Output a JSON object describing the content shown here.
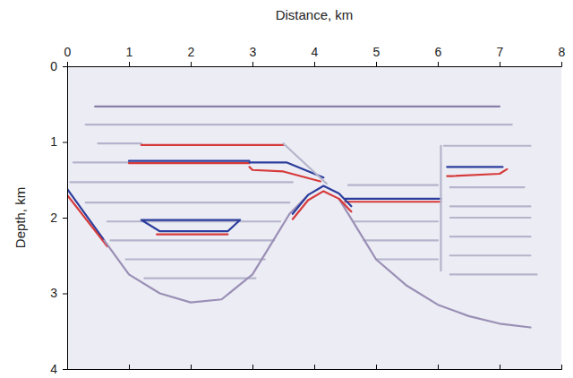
{
  "chart_data": {
    "type": "line",
    "x_label": "Distance, km",
    "y_label": "Depth, km",
    "xlim": [
      0,
      8
    ],
    "ylim": [
      0,
      4
    ],
    "xticks": [
      0,
      1,
      2,
      3,
      4,
      5,
      6,
      7,
      8
    ],
    "yticks": [
      0,
      1,
      2,
      3,
      4
    ],
    "series": [
      {
        "color": "#8a7ea8",
        "x": [
          0.45,
          7.0
        ],
        "values": [
          0.53,
          0.53
        ]
      },
      {
        "color": "#b4b4cc",
        "x": [
          0.3,
          7.2
        ],
        "values": [
          0.77,
          0.77
        ]
      },
      {
        "color": "#b4b4cc",
        "x": [
          0.5,
          1.2
        ],
        "values": [
          1.02,
          1.02
        ]
      },
      {
        "color": "#d63a3a",
        "x": [
          1.2,
          3.5
        ],
        "values": [
          1.04,
          1.04
        ]
      },
      {
        "color": "#b4b4cc",
        "x": [
          6.1,
          7.5
        ],
        "values": [
          1.05,
          1.05
        ]
      },
      {
        "color": "#b4b4cc",
        "x": [
          0.1,
          1.0
        ],
        "values": [
          1.27,
          1.27
        ]
      },
      {
        "color": "#2b3d9c",
        "x": [
          1.0,
          2.95
        ],
        "values": [
          1.25,
          1.25
        ]
      },
      {
        "color": "#d63a3a",
        "x": [
          1.0,
          2.95
        ],
        "values": [
          1.28,
          1.28
        ]
      },
      {
        "color": "#2b3d9c",
        "x": [
          2.95,
          3.55,
          4.15
        ],
        "values": [
          1.27,
          1.27,
          1.47
        ]
      },
      {
        "color": "#d63a3a",
        "x": [
          2.95,
          3.0,
          3.5,
          4.1
        ],
        "values": [
          1.33,
          1.37,
          1.39,
          1.52
        ]
      },
      {
        "color": "#b4b4cc",
        "x": [
          0.05,
          3.65
        ],
        "values": [
          1.53,
          1.53
        ]
      },
      {
        "color": "#b4b4cc",
        "x": [
          4.55,
          6.0
        ],
        "values": [
          1.57,
          1.57
        ]
      },
      {
        "color": "#b4b4cc",
        "x": [
          6.2,
          7.4
        ],
        "values": [
          1.6,
          1.6
        ]
      },
      {
        "color": "#b4b4cc",
        "x": [
          0.3,
          3.6
        ],
        "values": [
          1.8,
          1.8
        ]
      },
      {
        "color": "#2b3d9c",
        "x": [
          4.5,
          6.05
        ],
        "values": [
          1.75,
          1.75
        ]
      },
      {
        "color": "#d63a3a",
        "x": [
          4.5,
          6.05
        ],
        "values": [
          1.79,
          1.79
        ]
      },
      {
        "color": "#b4b4cc",
        "x": [
          6.2,
          7.5
        ],
        "values": [
          1.85,
          1.85
        ]
      },
      {
        "color": "#b4b4cc",
        "x": [
          0.65,
          3.45
        ],
        "values": [
          2.05,
          2.05
        ]
      },
      {
        "color": "#b4b4cc",
        "x": [
          4.65,
          6.0
        ],
        "values": [
          2.05,
          2.05
        ]
      },
      {
        "color": "#b4b4cc",
        "x": [
          6.2,
          7.5
        ],
        "values": [
          2.0,
          2.0
        ]
      },
      {
        "color": "#b4b4cc",
        "x": [
          0.7,
          3.35
        ],
        "values": [
          2.3,
          2.3
        ]
      },
      {
        "color": "#b4b4cc",
        "x": [
          4.8,
          6.0
        ],
        "values": [
          2.3,
          2.3
        ]
      },
      {
        "color": "#b4b4cc",
        "x": [
          6.2,
          7.5
        ],
        "values": [
          2.25,
          2.25
        ]
      },
      {
        "color": "#b4b4cc",
        "x": [
          0.95,
          3.2
        ],
        "values": [
          2.55,
          2.55
        ]
      },
      {
        "color": "#b4b4cc",
        "x": [
          5.0,
          6.0
        ],
        "values": [
          2.55,
          2.55
        ]
      },
      {
        "color": "#b4b4cc",
        "x": [
          6.2,
          7.5
        ],
        "values": [
          2.5,
          2.5
        ]
      },
      {
        "color": "#b4b4cc",
        "x": [
          1.25,
          3.05
        ],
        "values": [
          2.8,
          2.8
        ]
      },
      {
        "color": "#b4b4cc",
        "x": [
          6.2,
          7.6
        ],
        "values": [
          2.75,
          2.75
        ]
      },
      {
        "color": "#2b3d9c",
        "x": [
          6.15,
          7.05
        ],
        "values": [
          1.33,
          1.33
        ]
      },
      {
        "color": "#d63a3a",
        "x": [
          6.15,
          6.25,
          7.0,
          7.12
        ],
        "values": [
          1.45,
          1.45,
          1.42,
          1.36
        ]
      },
      {
        "color": "#2b3d9c",
        "x": [
          1.2,
          2.8,
          2.6,
          1.5,
          1.2
        ],
        "values": [
          2.03,
          2.03,
          2.18,
          2.18,
          2.03
        ]
      },
      {
        "color": "#d63a3a",
        "x": [
          1.45,
          2.6
        ],
        "values": [
          2.22,
          2.22
        ]
      },
      {
        "color": "#2b3d9c",
        "x": [
          0.0,
          0.6
        ],
        "values": [
          1.62,
          2.3
        ]
      },
      {
        "color": "#d63a3a",
        "x": [
          0.0,
          0.65
        ],
        "values": [
          1.7,
          2.38
        ]
      },
      {
        "color": "#9a8fb5",
        "x": [
          0.6,
          1.0,
          1.5,
          2.0,
          2.5,
          3.0,
          3.3,
          3.6,
          3.9
        ],
        "values": [
          2.3,
          2.75,
          3.0,
          3.12,
          3.08,
          2.75,
          2.35,
          1.95,
          1.7
        ]
      },
      {
        "color": "#9a8fb5",
        "x": [
          4.4,
          4.7,
          5.0,
          5.5,
          6.0,
          6.5,
          7.0,
          7.5
        ],
        "values": [
          1.75,
          2.15,
          2.55,
          2.9,
          3.15,
          3.3,
          3.4,
          3.45
        ]
      },
      {
        "color": "#2b3d9c",
        "x": [
          3.65,
          3.9,
          4.15,
          4.4,
          4.6
        ],
        "values": [
          1.95,
          1.7,
          1.58,
          1.68,
          1.85
        ]
      },
      {
        "color": "#d63a3a",
        "x": [
          3.65,
          3.9,
          4.15,
          4.4,
          4.6
        ],
        "values": [
          2.02,
          1.77,
          1.65,
          1.75,
          1.92
        ]
      },
      {
        "color": "#b4b4cc",
        "x": [
          3.5,
          4.2
        ],
        "values": [
          1.02,
          1.55
        ]
      },
      {
        "color": "#b4b4cc",
        "x": [
          6.05,
          6.05
        ],
        "values": [
          1.05,
          2.7
        ]
      }
    ]
  }
}
